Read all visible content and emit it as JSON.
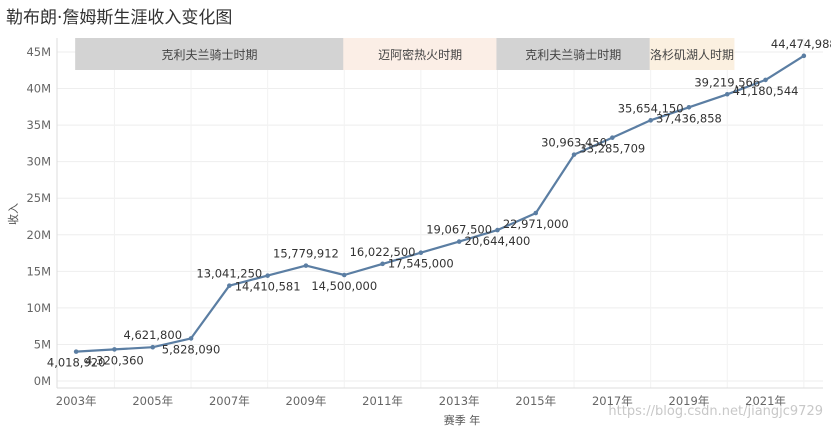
{
  "page_title": "勒布朗·詹姆斯生涯收入变化图",
  "watermark": "https://blog.csdn.net/jiangjc9729",
  "chart_data": {
    "type": "line",
    "title": "勒布朗·詹姆斯生涯收入变化图",
    "xlabel": "赛季 年",
    "ylabel": "收入",
    "x": [
      2003,
      2004,
      2005,
      2006,
      2007,
      2008,
      2009,
      2010,
      2011,
      2012,
      2013,
      2014,
      2015,
      2016,
      2017,
      2018,
      2019,
      2020,
      2021,
      2022
    ],
    "values": [
      4018920,
      4320360,
      4621800,
      5828090,
      13041250,
      14410581,
      15779912,
      14500000,
      16022500,
      17545000,
      19067500,
      20644400,
      22971000,
      30963450,
      33285709,
      35654150,
      37436858,
      39219566,
      41180544,
      44474988
    ],
    "value_labels": [
      "4,018,920",
      "4,320,360",
      "4,621,800",
      "5,828,090",
      "13,041,250",
      "14,410,581",
      "15,779,912",
      "14,500,000",
      "16,022,500",
      "17,545,000",
      "19,067,500",
      "20,644,400",
      "22,971,000",
      "30,963,450",
      "33,285,709",
      "35,654,150",
      "37,436,858",
      "39,219,566",
      "41,180,544",
      "44,474,988"
    ],
    "label_position": [
      "below",
      "below",
      "above",
      "below",
      "above",
      "below",
      "above",
      "below",
      "above",
      "below",
      "above",
      "below",
      "below",
      "above",
      "below",
      "above",
      "below",
      "above",
      "below",
      "above"
    ],
    "ylim": [
      0,
      45000000
    ],
    "yticks": [
      0,
      5000000,
      10000000,
      15000000,
      20000000,
      25000000,
      30000000,
      35000000,
      40000000,
      45000000
    ],
    "ytick_labels": [
      "0M",
      "5M",
      "10M",
      "15M",
      "20M",
      "25M",
      "30M",
      "35M",
      "40M",
      "45M"
    ],
    "xlim": [
      2002.5,
      2022.5
    ],
    "xticks": [
      2003,
      2005,
      2007,
      2009,
      2011,
      2013,
      2015,
      2017,
      2019,
      2021
    ],
    "xtick_labels": [
      "2003年",
      "2005年",
      "2007年",
      "2009年",
      "2011年",
      "2013年",
      "2015年",
      "2017年",
      "2019年",
      "2021年"
    ],
    "grid": true,
    "line_color": "#5b7ea3",
    "eras": [
      {
        "label": "克利夫兰骑士时期",
        "from": 2003,
        "to": 2010,
        "color": "#d3d3d3"
      },
      {
        "label": "迈阿密热火时期",
        "from": 2010,
        "to": 2014,
        "color": "#fbeee6"
      },
      {
        "label": "克利夫兰骑士时期",
        "from": 2014,
        "to": 2018,
        "color": "#d3d3d3"
      },
      {
        "label": "洛杉矶湖人时期",
        "from": 2018,
        "to": 2020.2,
        "color": "#fbf0e0"
      }
    ]
  }
}
